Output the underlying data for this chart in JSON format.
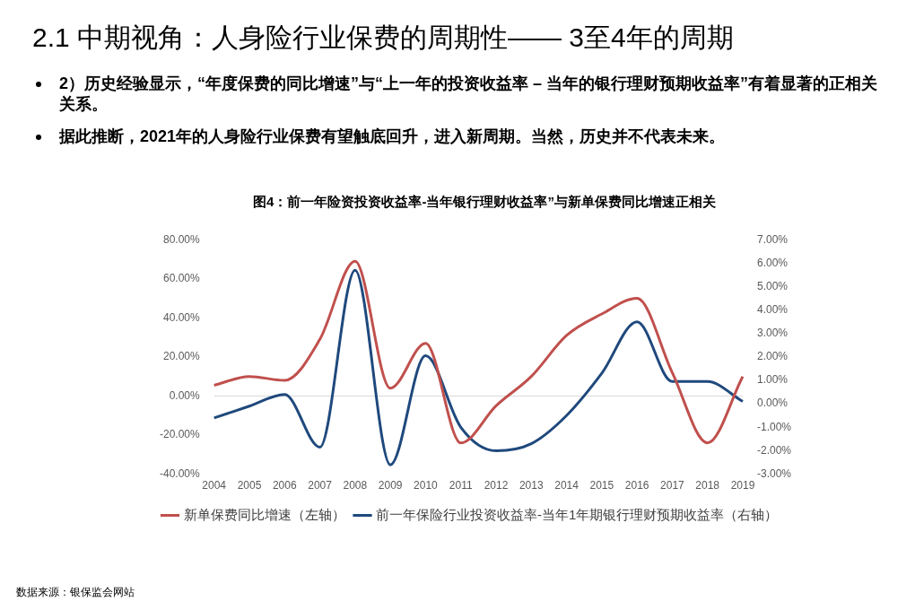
{
  "chart_data": {
    "type": "line",
    "title": "2.1 中期视角：人身险行业保费的周期性—— 3至4年的周期",
    "subtitle": "图4：前一年险资投资收益率-当年银行理财收益率”与新单保费同比增速正相关",
    "annotations": [
      "2）历史经验显示，“年度保费的同比增速”与“上一年的投资收益率 – 当年的银行理财预期收益率”有着显著的正相关关系。",
      "据此推断，2021年的人身险行业保费有望触底回升，进入新周期。当然，历史并不代表未来。",
      "数据来源：银保监会网站"
    ],
    "categories": [
      "2004",
      "2005",
      "2006",
      "2007",
      "2008",
      "2009",
      "2010",
      "2011",
      "2012",
      "2013",
      "2014",
      "2015",
      "2016",
      "2017",
      "2018",
      "2019"
    ],
    "series": [
      {
        "name": "新单保费同比增速（左轴）",
        "color": "#c0504d",
        "values": [
          5.5,
          10,
          8,
          29,
          69,
          4,
          27,
          -24,
          -5,
          10,
          31,
          42,
          50,
          12,
          -24,
          10
        ]
      },
      {
        "name": "前一年保险行业投资收益率-当年1年期银行理财预期收益率（右轴）",
        "color": "#1f497d",
        "axis": "y2",
        "values": [
          -0.6,
          -0.1,
          0.4,
          -1.85,
          5.7,
          -2.6,
          2.05,
          -1.0,
          -2.0,
          -1.7,
          -0.5,
          1.3,
          3.5,
          0.95,
          0.95,
          0.1
        ]
      }
    ],
    "ylim": [
      -40,
      80
    ],
    "yticks": [
      {
        "value": -40,
        "label": "-40.00%"
      },
      {
        "value": -20,
        "label": "-20.00%"
      },
      {
        "value": 0,
        "label": "0.00%"
      },
      {
        "value": 20,
        "label": "20.00%"
      },
      {
        "value": 40,
        "label": "40.00%"
      },
      {
        "value": 60,
        "label": "60.00%"
      },
      {
        "value": 80,
        "label": "80.00%"
      }
    ],
    "y2lim": [
      -3,
      7
    ],
    "y2ticks": [
      {
        "value": -3,
        "label": "-3.00%"
      },
      {
        "value": -2,
        "label": "-2.00%"
      },
      {
        "value": -1,
        "label": "-1.00%"
      },
      {
        "value": 0,
        "label": "0.00%"
      },
      {
        "value": 1,
        "label": "1.00%"
      },
      {
        "value": 2,
        "label": "2.00%"
      },
      {
        "value": 3,
        "label": "3.00%"
      },
      {
        "value": 4,
        "label": "4.00%"
      },
      {
        "value": 5,
        "label": "5.00%"
      },
      {
        "value": 6,
        "label": "6.00%"
      },
      {
        "value": 7,
        "label": "7.00%"
      }
    ],
    "ref_lines": [
      {
        "axis": "y",
        "value": 0,
        "color": "#d9d9d9"
      }
    ],
    "grid": false,
    "legend": "bottom",
    "marker": "none",
    "line_style": "solid"
  }
}
